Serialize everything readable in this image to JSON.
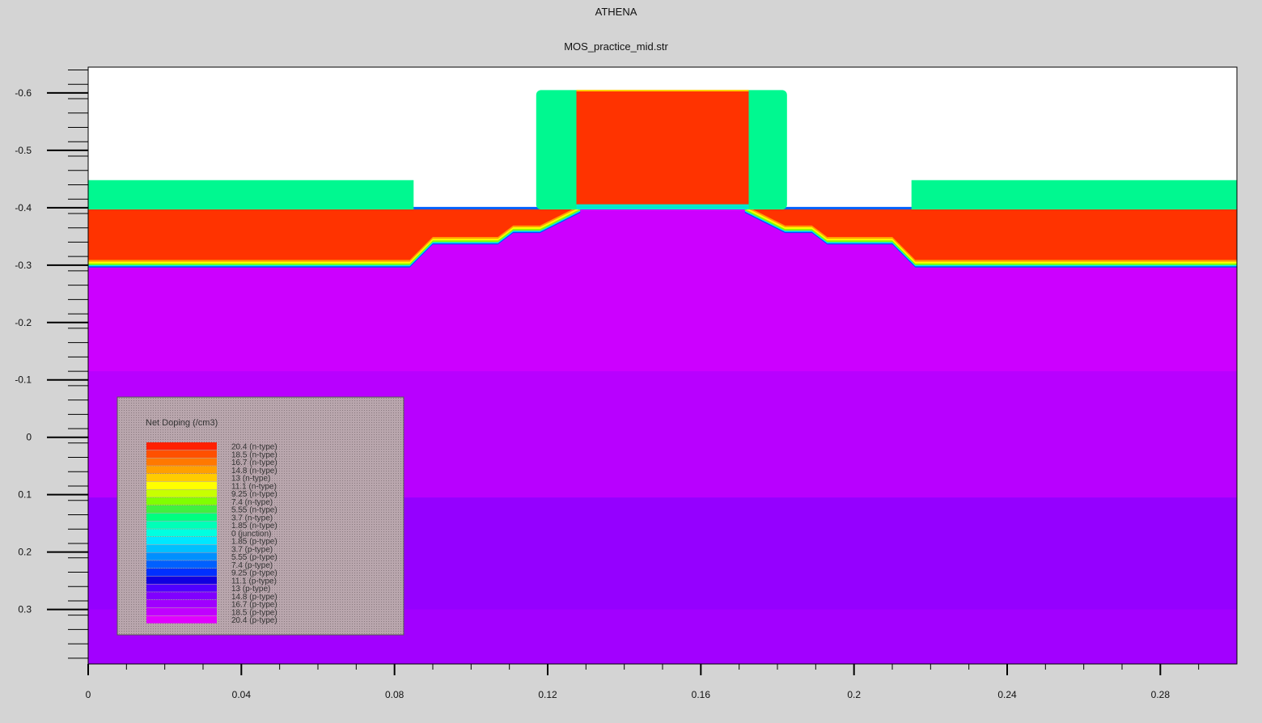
{
  "app_title": "ATHENA",
  "plot_title": "MOS_practice_mid.str",
  "chart_data": {
    "type": "heatmap",
    "xlim": [
      0,
      0.3
    ],
    "ylim": [
      -0.645,
      0.395
    ],
    "y_inverted": true,
    "x_ticks": [
      0,
      0.04,
      0.08,
      0.12,
      0.16,
      0.2,
      0.24,
      0.28
    ],
    "x_tick_labels": [
      "0",
      "0.04",
      "0.08",
      "0.12",
      "0.16",
      "0.2",
      "0.24",
      "0.28"
    ],
    "y_ticks": [
      -0.6,
      -0.5,
      -0.4,
      -0.3,
      -0.2,
      -0.1,
      0,
      0.1,
      0.2,
      0.3
    ],
    "y_tick_labels": [
      "-0.6",
      "-0.5",
      "-0.4",
      "-0.3",
      "-0.2",
      "-0.1",
      "0",
      "0.1",
      "0.2",
      "0.3"
    ],
    "grid": false,
    "legend_position": "bottom-left",
    "legend": {
      "title": "Net Doping (/cm3)",
      "entries": [
        {
          "label": "20.4 (n-type)",
          "color": "#ff2000"
        },
        {
          "label": "18.5 (n-type)",
          "color": "#ff5000"
        },
        {
          "label": "16.7 (n-type)",
          "color": "#ff7800"
        },
        {
          "label": "14.8 (n-type)",
          "color": "#ffa000"
        },
        {
          "label": "13 (n-type)",
          "color": "#ffcc00"
        },
        {
          "label": "11.1 (n-type)",
          "color": "#ffff00"
        },
        {
          "label": "9.25 (n-type)",
          "color": "#c8ff00"
        },
        {
          "label": "7.4 (n-type)",
          "color": "#80ff00"
        },
        {
          "label": "5.55 (n-type)",
          "color": "#40f040"
        },
        {
          "label": "3.7 (n-type)",
          "color": "#00ff80"
        },
        {
          "label": "1.85 (n-type)",
          "color": "#00ffb8"
        },
        {
          "label": "0 (junction)",
          "color": "#00ffe0"
        },
        {
          "label": "1.85 (p-type)",
          "color": "#00e8ff"
        },
        {
          "label": "3.7 (p-type)",
          "color": "#00c0ff"
        },
        {
          "label": "5.55 (p-type)",
          "color": "#0090ff"
        },
        {
          "label": "7.4 (p-type)",
          "color": "#0060ff"
        },
        {
          "label": "9.25 (p-type)",
          "color": "#0030ff"
        },
        {
          "label": "11.1 (p-type)",
          "color": "#1000e0"
        },
        {
          "label": "13 (p-type)",
          "color": "#5000ff"
        },
        {
          "label": "14.8 (p-type)",
          "color": "#8000ff"
        },
        {
          "label": "16.7 (p-type)",
          "color": "#a000ff"
        },
        {
          "label": "18.5 (p-type)",
          "color": "#c000ff"
        },
        {
          "label": "20.4 (p-type)",
          "color": "#e000ff"
        }
      ]
    },
    "regions": {
      "substrate_bands": [
        {
          "y_from": -0.4,
          "y_to": -0.115,
          "color": "#cc00ff"
        },
        {
          "y_from": -0.115,
          "y_to": 0.105,
          "color": "#b800ff"
        },
        {
          "y_from": 0.105,
          "y_to": 0.3,
          "color": "#9500ff"
        },
        {
          "y_from": 0.3,
          "y_to": 0.395,
          "color": "#a200ff"
        }
      ],
      "nplus_color": "#ff3300",
      "oxide_color": "#00f890",
      "gate_color": "#ff3300",
      "background_color": "#ffffff"
    }
  }
}
